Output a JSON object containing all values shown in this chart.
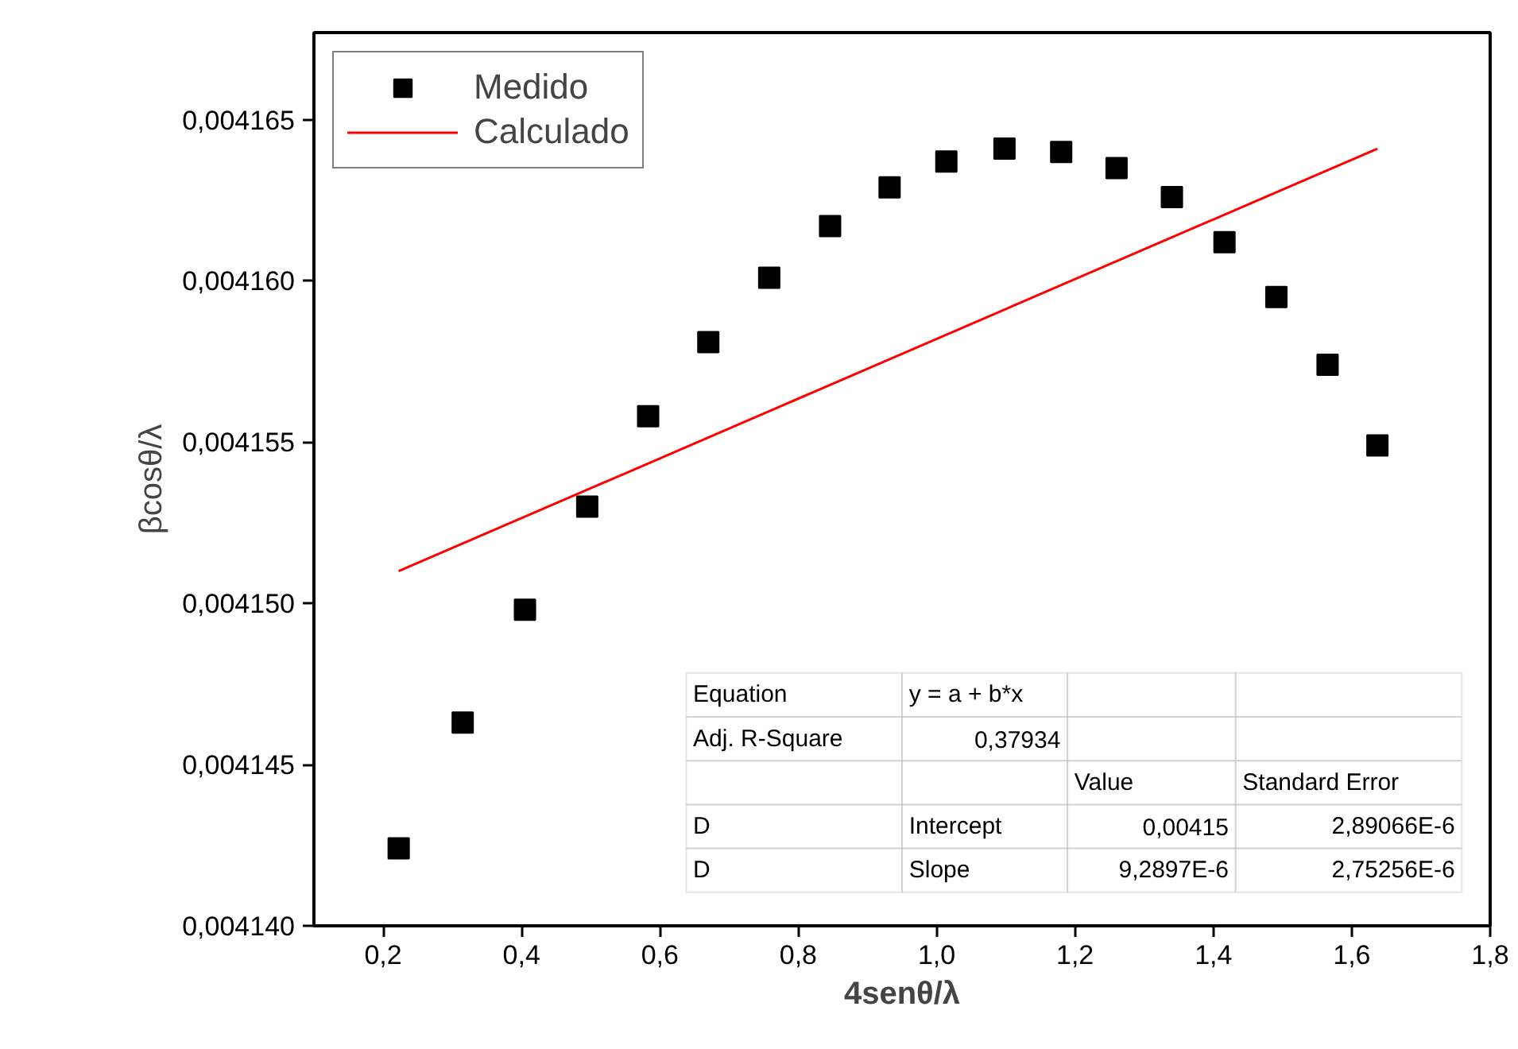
{
  "chart_data": {
    "type": "scatter",
    "xlabel": "4senθ/λ",
    "ylabel": "βcosθ/λ",
    "xlim": [
      0.1,
      1.8
    ],
    "ylim": [
      0.00414,
      0.0041677
    ],
    "xticks": [
      {
        "value": 0.2,
        "label": "0,2"
      },
      {
        "value": 0.4,
        "label": "0,4"
      },
      {
        "value": 0.6,
        "label": "0,6"
      },
      {
        "value": 0.8,
        "label": "0,8"
      },
      {
        "value": 1.0,
        "label": "1,0"
      },
      {
        "value": 1.2,
        "label": "1,2"
      },
      {
        "value": 1.4,
        "label": "1,4"
      },
      {
        "value": 1.6,
        "label": "1,6"
      },
      {
        "value": 1.8,
        "label": "1,8"
      }
    ],
    "yticks": [
      {
        "value": 0.00414,
        "label": "0,004140"
      },
      {
        "value": 0.004145,
        "label": "0,004145"
      },
      {
        "value": 0.00415,
        "label": "0,004150"
      },
      {
        "value": 0.004155,
        "label": "0,004155"
      },
      {
        "value": 0.00416,
        "label": "0,004160"
      },
      {
        "value": 0.004165,
        "label": "0,004165"
      }
    ],
    "grid": false,
    "legend": "top left",
    "series": [
      {
        "name": "Medido",
        "type": "scatter",
        "marker": "square",
        "color": "#000000",
        "x": [
          0.2225,
          0.315,
          0.405,
          0.495,
          0.583,
          0.67,
          0.758,
          0.846,
          0.932,
          1.014,
          1.098,
          1.18,
          1.26,
          1.34,
          1.416,
          1.491,
          1.565,
          1.637
        ],
        "values": [
          0.0041424,
          0.0041463,
          0.0041498,
          0.004153,
          0.0041558,
          0.0041581,
          0.0041601,
          0.0041617,
          0.0041629,
          0.0041637,
          0.0041641,
          0.004164,
          0.0041635,
          0.0041626,
          0.0041612,
          0.0041595,
          0.0041574,
          0.0041549
        ]
      },
      {
        "name": "Calculado",
        "type": "line",
        "marker": "none",
        "line_style": "solid",
        "color": "#ff0000",
        "x": [
          0.2225,
          1.637
        ],
        "values": [
          0.004151,
          0.0041641
        ]
      }
    ],
    "annotations": [
      "Equation",
      "y = a + b*x",
      "Adj. R-Square",
      "0,37934",
      "Value",
      "Standard Error",
      "D",
      "Intercept",
      "0,00415",
      "2,89066E-6",
      "D",
      "Slope",
      "9,2897E-6",
      "2,75256E-6"
    ]
  }
}
